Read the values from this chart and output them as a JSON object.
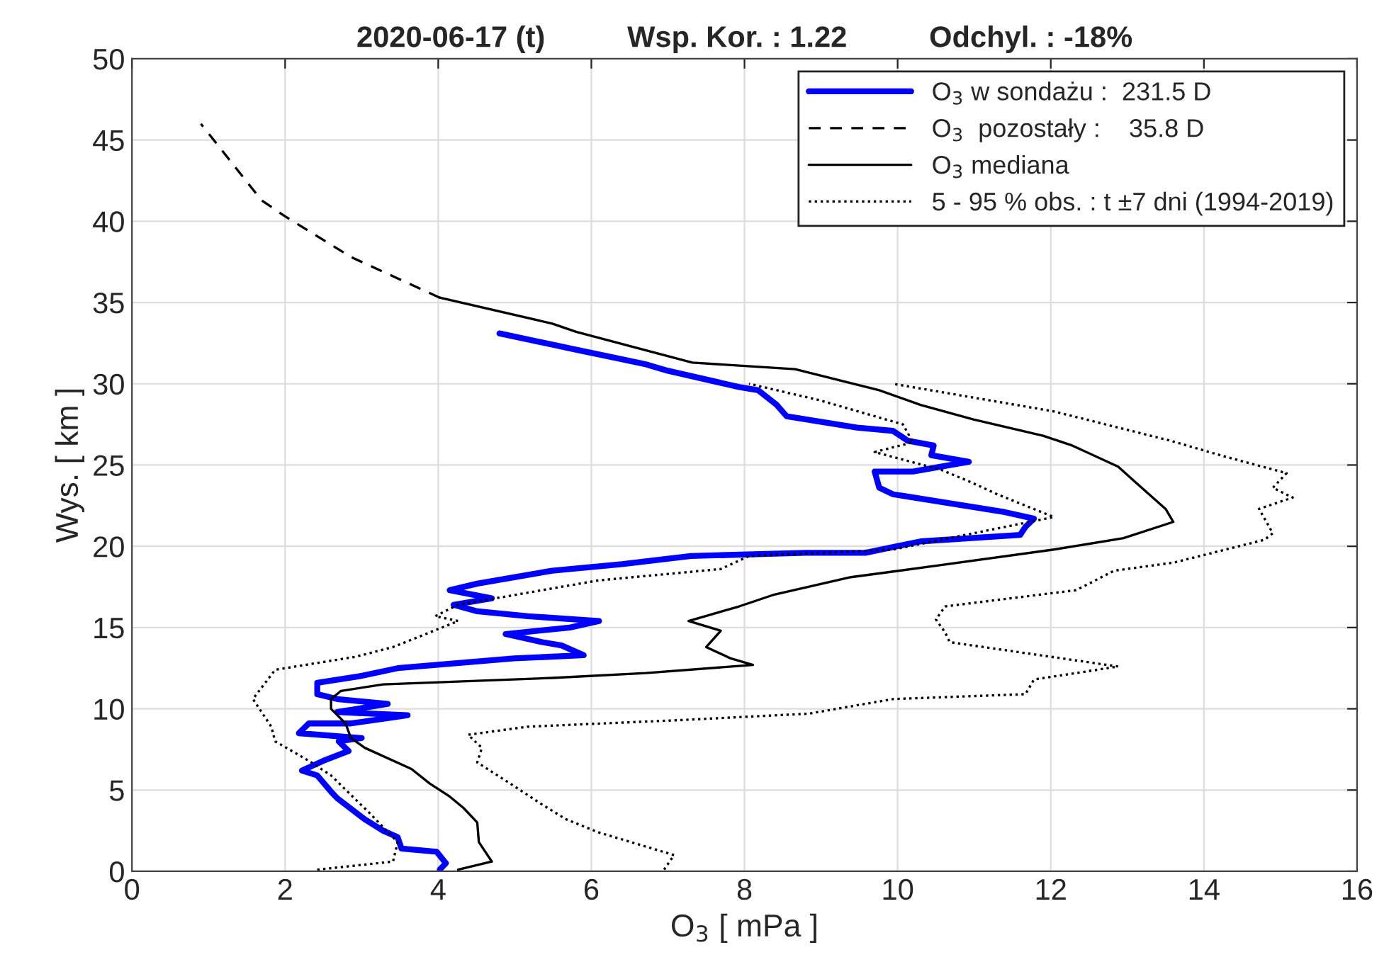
{
  "chart_data": {
    "type": "line",
    "title": "2020-06-17 (t)          Wsp. Kor. : 1.22          Odchyl. : -18%",
    "xlabel": "O$_{3}$ [ mPa ]",
    "ylabel": "Wys. [ km ]",
    "xlim": [
      0,
      16
    ],
    "xticks": [
      0,
      2,
      4,
      6,
      8,
      10,
      12,
      14,
      16
    ],
    "ylim": [
      0,
      50
    ],
    "yticks": [
      0,
      5,
      10,
      15,
      20,
      25,
      30,
      35,
      40,
      45,
      50
    ],
    "grid": true,
    "legend": "top right",
    "marker": "none",
    "series": [
      {
        "name": "O$_{3}$ w sondażu :  231.5 D",
        "color": "#0000ff",
        "line_style": "solid",
        "x": [
          4.02,
          4.1,
          3.98,
          3.52,
          3.47,
          3.28,
          3.04,
          2.68,
          2.6,
          2.42,
          2.22,
          2.5,
          2.83,
          2.7,
          3.0,
          2.18,
          2.31,
          2.86,
          3.6,
          2.68,
          3.34,
          2.68,
          2.42,
          2.42,
          2.97,
          3.47,
          4.99,
          5.9,
          5.61,
          5.36,
          4.88,
          5.72,
          6.1,
          5.17,
          4.51,
          4.2,
          4.7,
          4.15,
          4.51,
          5.49,
          6.4,
          7.3,
          8.8,
          9.58,
          10.3,
          11.6,
          11.67,
          11.78,
          11.4,
          9.94,
          9.76,
          9.7,
          10.2,
          10.93,
          10.44,
          10.47,
          10.13,
          9.94,
          9.47,
          8.55,
          8.42,
          8.18,
          7.93,
          7.0,
          6.71,
          5.8,
          4.8
        ],
        "values": [
          0.1,
          0.5,
          1.2,
          1.4,
          2.1,
          2.5,
          3.2,
          4.5,
          4.9,
          5.9,
          6.2,
          6.8,
          7.4,
          8.0,
          8.2,
          8.5,
          9.1,
          9.1,
          9.6,
          9.8,
          10.3,
          10.6,
          10.9,
          11.6,
          12.0,
          12.5,
          13.1,
          13.3,
          13.9,
          14.1,
          14.6,
          15.0,
          15.4,
          15.7,
          16.0,
          16.4,
          16.8,
          17.3,
          17.7,
          18.5,
          18.9,
          19.4,
          19.6,
          19.6,
          20.3,
          20.7,
          21.2,
          21.7,
          22.1,
          23.2,
          23.6,
          24.6,
          24.6,
          25.2,
          25.6,
          26.2,
          26.5,
          27.1,
          27.3,
          28.0,
          28.7,
          29.6,
          29.8,
          30.8,
          31.2,
          32.1,
          33.1
        ]
      },
      {
        "name": "O$_{3}$  pozostały :    35.8 D",
        "color": "#000000",
        "line_style": "dashed",
        "x": [
          4.02,
          2.86,
          2.0,
          1.69,
          0.9
        ],
        "values": [
          35.3,
          37.8,
          40.3,
          41.3,
          46.0
        ]
      },
      {
        "name": "O$_{3}$ mediana",
        "color": "#000000",
        "line_style": "solid",
        "x": [
          4.26,
          4.7,
          4.53,
          4.51,
          4.33,
          4.15,
          3.89,
          3.65,
          3.04,
          2.86,
          2.79,
          2.6,
          2.6,
          2.73,
          3.28,
          5.49,
          6.71,
          8.11,
          7.82,
          7.5,
          7.69,
          7.27,
          7.93,
          8.37,
          9.39,
          10.5,
          12.04,
          12.95,
          13.6,
          13.5,
          13.14,
          12.88,
          12.28,
          11.9,
          10.99,
          10.3,
          9.76,
          8.66,
          7.32,
          5.8,
          5.49,
          4.02
        ],
        "values": [
          0.1,
          0.6,
          1.8,
          3.0,
          3.9,
          4.6,
          5.4,
          6.3,
          7.6,
          8.2,
          9.1,
          10.0,
          10.6,
          11.1,
          11.5,
          11.9,
          12.2,
          12.7,
          13.1,
          13.8,
          14.8,
          15.4,
          16.3,
          17.0,
          18.1,
          18.8,
          19.8,
          20.5,
          21.5,
          22.3,
          23.8,
          24.9,
          26.2,
          26.8,
          27.8,
          28.7,
          29.6,
          30.9,
          31.3,
          33.2,
          33.7,
          35.3
        ]
      },
      {
        "name": "5 - 95 % obs. : t ±7 dni (1994-2019)",
        "color": "#000000",
        "line_style": "dotted",
        "x": [
          2.42,
          3.41,
          3.47,
          3.1,
          2.86,
          2.6,
          2.31,
          1.87,
          1.82,
          1.58,
          1.87,
          2.92,
          3.41,
          3.89,
          4.26,
          3.96,
          4.26,
          4.75,
          6.09,
          7.69,
          8.06,
          9.94,
          12.04,
          11.3,
          10.93,
          10.57,
          9.7,
          10.2,
          10.07,
          8.97,
          8.06
        ],
        "values": [
          0.1,
          0.6,
          1.8,
          3.6,
          4.7,
          5.9,
          6.8,
          8.0,
          8.9,
          10.6,
          12.4,
          13.2,
          13.8,
          14.7,
          15.4,
          15.7,
          16.4,
          16.8,
          17.9,
          18.6,
          19.4,
          19.8,
          21.8,
          23.2,
          24.0,
          24.7,
          25.8,
          26.4,
          27.5,
          29.0,
          30.0
        ]
      },
      {
        "color": "#000000",
        "line_style": "dotted",
        "x": [
          6.95,
          7.08,
          6.09,
          5.67,
          5.36,
          4.94,
          4.51,
          4.57,
          4.39,
          5.17,
          7.14,
          8.84,
          9.94,
          11.67,
          11.78,
          12.88,
          12.15,
          10.68,
          10.62,
          10.5,
          10.62,
          12.33,
          12.83,
          13.61,
          14.79,
          14.9,
          14.72,
          15.16,
          14.9,
          15.08,
          14.29,
          13.56,
          12.04,
          10.31,
          9.94
        ],
        "values": [
          0.1,
          1.0,
          2.4,
          3.2,
          4.1,
          5.4,
          6.7,
          7.6,
          8.4,
          8.9,
          9.3,
          9.7,
          10.6,
          10.9,
          11.8,
          12.6,
          13.1,
          14.1,
          14.7,
          15.5,
          16.3,
          17.3,
          18.5,
          19.0,
          20.4,
          20.8,
          22.3,
          23.0,
          23.6,
          24.5,
          25.5,
          26.5,
          28.3,
          29.7,
          30.0
        ]
      }
    ]
  }
}
